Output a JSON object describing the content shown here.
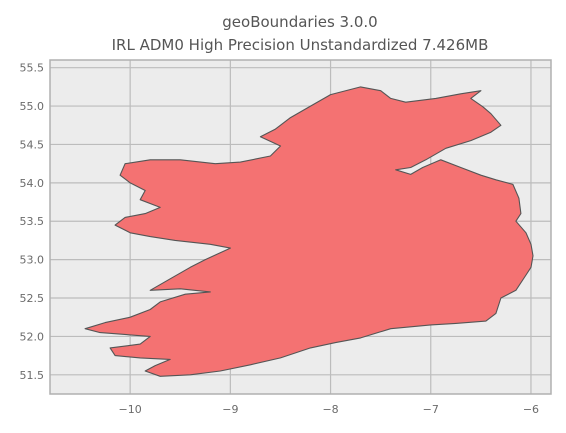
{
  "title_line1": "geoBoundaries 3.0.0",
  "title_line2": "IRL ADM0 High Precision Unstandardized 7.426MB",
  "chart_data": {
    "type": "map",
    "region": "Ireland",
    "xticks": [
      -10,
      -9,
      -8,
      -7,
      -6
    ],
    "yticks": [
      51.5,
      52.0,
      52.5,
      53.0,
      53.5,
      54.0,
      54.5,
      55.0,
      55.5
    ],
    "xtick_labels": [
      "−10",
      "−9",
      "−8",
      "−7",
      "−6"
    ],
    "ytick_labels": [
      "51.5",
      "52.0",
      "52.5",
      "53.0",
      "53.5",
      "54.0",
      "54.5",
      "55.0",
      "55.5"
    ],
    "xlim": [
      -10.8,
      -5.8
    ],
    "ylim": [
      51.25,
      55.6
    ],
    "grid": true,
    "colors": {
      "fill": "#f47272",
      "edge": "#555555",
      "background": "#ececec",
      "grid": "#bcbcbc",
      "axes": "#b0b0b0"
    },
    "outline": [
      [
        -7.25,
        55.05
      ],
      [
        -6.95,
        55.1
      ],
      [
        -6.7,
        55.16
      ],
      [
        -6.5,
        55.2
      ],
      [
        -6.6,
        55.1
      ],
      [
        -6.48,
        54.99
      ],
      [
        -6.4,
        54.9
      ],
      [
        -6.3,
        54.75
      ],
      [
        -6.4,
        54.66
      ],
      [
        -6.6,
        54.55
      ],
      [
        -6.85,
        54.45
      ],
      [
        -7.05,
        54.3
      ],
      [
        -7.2,
        54.2
      ],
      [
        -7.35,
        54.17
      ],
      [
        -7.2,
        54.11
      ],
      [
        -7.08,
        54.2
      ],
      [
        -6.9,
        54.3
      ],
      [
        -6.7,
        54.2
      ],
      [
        -6.5,
        54.1
      ],
      [
        -6.35,
        54.04
      ],
      [
        -6.18,
        53.98
      ],
      [
        -6.12,
        53.8
      ],
      [
        -6.1,
        53.6
      ],
      [
        -6.15,
        53.5
      ],
      [
        -6.05,
        53.35
      ],
      [
        -6.0,
        53.2
      ],
      [
        -5.98,
        53.05
      ],
      [
        -6.0,
        52.9
      ],
      [
        -6.05,
        52.8
      ],
      [
        -6.15,
        52.6
      ],
      [
        -6.3,
        52.5
      ],
      [
        -6.35,
        52.3
      ],
      [
        -6.45,
        52.2
      ],
      [
        -6.75,
        52.17
      ],
      [
        -7.0,
        52.15
      ],
      [
        -7.4,
        52.1
      ],
      [
        -7.7,
        51.98
      ],
      [
        -7.95,
        51.92
      ],
      [
        -8.2,
        51.85
      ],
      [
        -8.5,
        51.72
      ],
      [
        -8.8,
        51.63
      ],
      [
        -9.1,
        51.55
      ],
      [
        -9.4,
        51.5
      ],
      [
        -9.7,
        51.48
      ],
      [
        -9.85,
        51.55
      ],
      [
        -9.75,
        51.62
      ],
      [
        -9.6,
        51.7
      ],
      [
        -9.9,
        51.72
      ],
      [
        -10.15,
        51.75
      ],
      [
        -10.2,
        51.85
      ],
      [
        -9.9,
        51.9
      ],
      [
        -9.8,
        52.0
      ],
      [
        -10.3,
        52.05
      ],
      [
        -10.45,
        52.1
      ],
      [
        -10.25,
        52.18
      ],
      [
        -10.0,
        52.25
      ],
      [
        -9.8,
        52.35
      ],
      [
        -9.7,
        52.45
      ],
      [
        -9.45,
        52.55
      ],
      [
        -9.2,
        52.58
      ],
      [
        -9.5,
        52.62
      ],
      [
        -9.8,
        52.6
      ],
      [
        -9.6,
        52.75
      ],
      [
        -9.4,
        52.9
      ],
      [
        -9.25,
        53.0
      ],
      [
        -9.0,
        53.15
      ],
      [
        -9.2,
        53.2
      ],
      [
        -9.55,
        53.25
      ],
      [
        -9.8,
        53.3
      ],
      [
        -10.0,
        53.35
      ],
      [
        -10.15,
        53.45
      ],
      [
        -10.05,
        53.55
      ],
      [
        -9.85,
        53.6
      ],
      [
        -9.7,
        53.68
      ],
      [
        -9.9,
        53.78
      ],
      [
        -9.85,
        53.9
      ],
      [
        -10.0,
        54.0
      ],
      [
        -10.1,
        54.1
      ],
      [
        -10.05,
        54.25
      ],
      [
        -9.8,
        54.3
      ],
      [
        -9.5,
        54.3
      ],
      [
        -9.15,
        54.25
      ],
      [
        -8.9,
        54.27
      ],
      [
        -8.6,
        54.35
      ],
      [
        -8.5,
        54.48
      ],
      [
        -8.7,
        54.6
      ],
      [
        -8.55,
        54.7
      ],
      [
        -8.4,
        54.85
      ],
      [
        -8.2,
        55.0
      ],
      [
        -8.0,
        55.15
      ],
      [
        -7.7,
        55.25
      ],
      [
        -7.5,
        55.2
      ],
      [
        -7.4,
        55.1
      ],
      [
        -7.25,
        55.05
      ]
    ]
  }
}
